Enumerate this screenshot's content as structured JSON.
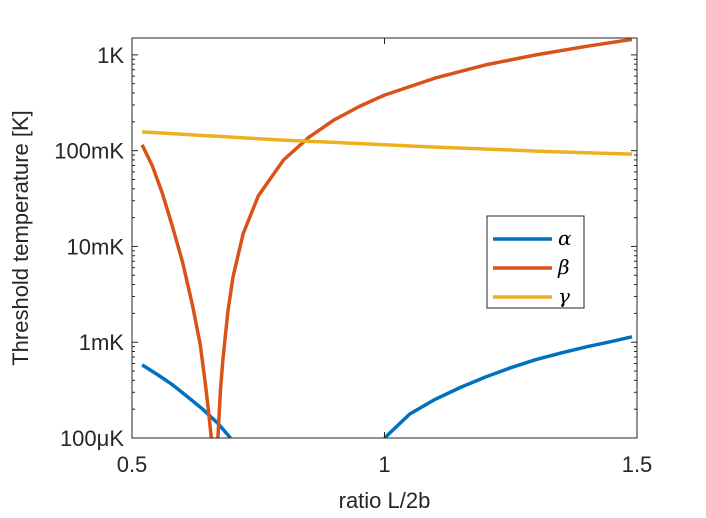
{
  "chart_data": {
    "type": "line",
    "xlabel": "ratio L/2b",
    "ylabel": "Threshold temperature [K]",
    "xscale": "linear",
    "yscale": "log",
    "xlim": [
      0.5,
      1.5
    ],
    "ylim": [
      0.0001,
      1.5
    ],
    "x_ticks": [
      0.5,
      1,
      1.5
    ],
    "x_tick_labels": [
      "0.5",
      "1",
      "1.5"
    ],
    "y_ticks": [
      0.0001,
      0.001,
      0.01,
      0.1,
      1
    ],
    "y_tick_labels": [
      "100μK",
      "1mK",
      "10mK",
      "100mK",
      "1K"
    ],
    "grid": false,
    "legend_position": "right",
    "series": [
      {
        "name": "α",
        "color": "#0072BD",
        "segments": [
          {
            "x": [
              0.52,
              0.55,
              0.58,
              0.61,
              0.64,
              0.67,
              0.695
            ],
            "y": [
              0.00058,
              0.00046,
              0.00036,
              0.00027,
              0.0002,
              0.000142,
              0.0001
            ]
          },
          {
            "x": [
              1.0,
              1.05,
              1.1,
              1.15,
              1.2,
              1.25,
              1.3,
              1.35,
              1.4,
              1.45,
              1.49
            ],
            "y": [
              0.0001,
              0.000178,
              0.000253,
              0.000337,
              0.000433,
              0.000542,
              0.000659,
              0.000774,
              0.000895,
              0.00102,
              0.00114
            ]
          }
        ]
      },
      {
        "name": "β",
        "color": "#D95319",
        "segments": [
          {
            "x": [
              0.52,
              0.54,
              0.56,
              0.58,
              0.6,
              0.62,
              0.635,
              0.645,
              0.652,
              0.657
            ],
            "y": [
              0.115,
              0.07,
              0.036,
              0.0162,
              0.0069,
              0.0024,
              0.00095,
              0.00038,
              0.00018,
              0.0001
            ]
          },
          {
            "x": [
              0.67,
              0.675,
              0.68,
              0.69,
              0.7,
              0.72,
              0.75,
              0.8,
              0.85,
              0.9,
              0.95,
              1.0,
              1.1,
              1.2,
              1.3,
              1.4,
              1.49
            ],
            "y": [
              0.0001,
              0.00031,
              0.00066,
              0.0021,
              0.0048,
              0.0135,
              0.0337,
              0.0798,
              0.138,
              0.209,
              0.289,
              0.38,
              0.572,
              0.786,
              1.0,
              1.23,
              1.45
            ]
          }
        ]
      },
      {
        "name": "γ",
        "color": "#EDB120",
        "segments": [
          {
            "x": [
              0.52,
              0.6,
              0.7,
              0.8,
              0.9,
              1.0,
              1.1,
              1.2,
              1.3,
              1.4,
              1.49
            ],
            "y": [
              0.157,
              0.148,
              0.138,
              0.129,
              0.122,
              0.115,
              0.109,
              0.104,
              0.099,
              0.095,
              0.092
            ]
          }
        ]
      }
    ]
  }
}
